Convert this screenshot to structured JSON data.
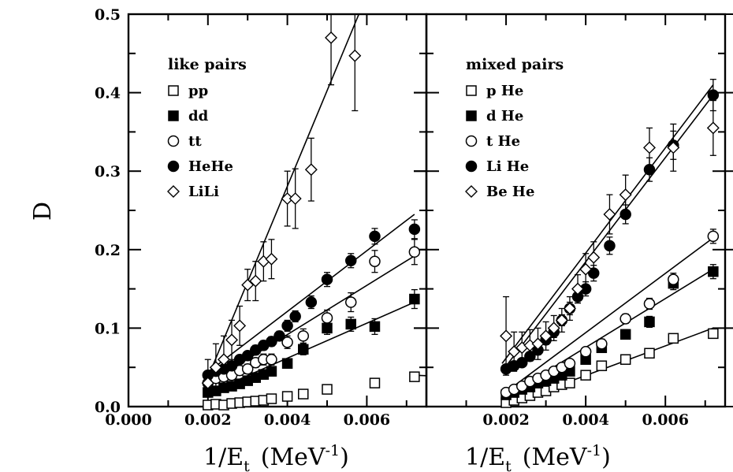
{
  "chart_data": [
    {
      "type": "scatter",
      "panel": "left",
      "ylabel": "D",
      "xlabel": "1/E",
      "xlabel_sub": "t",
      "xlabel_unit": "(MeV",
      "xlabel_exp": "-1",
      "xlabel_close": ")",
      "xlim": [
        0.0,
        0.0075
      ],
      "ylim": [
        0.0,
        0.5
      ],
      "xticks": [
        "0.000",
        "0.002",
        "0.004",
        "0.006"
      ],
      "yticks": [
        "0.0",
        "0.1",
        "0.2",
        "0.3",
        "0.4",
        "0.5"
      ],
      "legend_title": "like pairs",
      "legend_position": "top-left",
      "series": [
        {
          "name": "pp",
          "marker": "open-square",
          "fit": [
            0.027,
            0.0,
            0.0072,
            0.04
          ],
          "x": [
            0.002,
            0.0022,
            0.0024,
            0.0026,
            0.0028,
            0.003,
            0.0032,
            0.0034,
            0.0036,
            0.004,
            0.0044,
            0.005,
            0.0062,
            0.0072
          ],
          "y": [
            0.002,
            0.003,
            0.002,
            0.004,
            0.005,
            0.006,
            0.007,
            0.008,
            0.01,
            0.013,
            0.016,
            0.022,
            0.03,
            0.038
          ],
          "err": [
            0.003,
            0.003,
            0.003,
            0.003,
            0.003,
            0.003,
            0.003,
            0.003,
            0.003,
            0.003,
            0.003,
            0.003,
            0.004,
            0.004
          ]
        },
        {
          "name": "dd",
          "marker": "filled-square",
          "fit": [
            0.0019,
            0.015,
            0.0072,
            0.133
          ],
          "x": [
            0.002,
            0.0022,
            0.0024,
            0.0026,
            0.0028,
            0.003,
            0.0032,
            0.0034,
            0.0036,
            0.004,
            0.0044,
            0.005,
            0.0056,
            0.0062,
            0.0072
          ],
          "y": [
            0.018,
            0.02,
            0.024,
            0.026,
            0.029,
            0.033,
            0.037,
            0.041,
            0.045,
            0.055,
            0.073,
            0.1,
            0.105,
            0.102,
            0.137
          ],
          "err": [
            0.005,
            0.005,
            0.005,
            0.005,
            0.005,
            0.005,
            0.006,
            0.006,
            0.006,
            0.006,
            0.007,
            0.008,
            0.009,
            0.01,
            0.012
          ]
        },
        {
          "name": "tt",
          "marker": "open-circle",
          "fit": [
            0.0019,
            0.026,
            0.0072,
            0.192
          ],
          "x": [
            0.002,
            0.0022,
            0.0024,
            0.0026,
            0.0028,
            0.003,
            0.0032,
            0.0034,
            0.0036,
            0.004,
            0.0044,
            0.005,
            0.0056,
            0.0062,
            0.0072
          ],
          "y": [
            0.03,
            0.036,
            0.038,
            0.04,
            0.046,
            0.048,
            0.056,
            0.06,
            0.06,
            0.082,
            0.09,
            0.113,
            0.133,
            0.185,
            0.197
          ],
          "err": [
            0.005,
            0.005,
            0.005,
            0.006,
            0.006,
            0.006,
            0.006,
            0.007,
            0.007,
            0.008,
            0.009,
            0.01,
            0.012,
            0.014,
            0.016
          ]
        },
        {
          "name": "HeHe",
          "marker": "filled-circle",
          "fit": [
            0.0019,
            0.04,
            0.0072,
            0.245
          ],
          "x": [
            0.002,
            0.0022,
            0.0024,
            0.0026,
            0.0028,
            0.003,
            0.0032,
            0.0034,
            0.0036,
            0.0038,
            0.004,
            0.0042,
            0.0046,
            0.005,
            0.0056,
            0.0062,
            0.0072
          ],
          "y": [
            0.04,
            0.045,
            0.048,
            0.052,
            0.06,
            0.065,
            0.072,
            0.078,
            0.083,
            0.09,
            0.103,
            0.115,
            0.133,
            0.162,
            0.186,
            0.217,
            0.226
          ],
          "err": [
            0.005,
            0.005,
            0.005,
            0.005,
            0.005,
            0.005,
            0.006,
            0.006,
            0.006,
            0.006,
            0.007,
            0.007,
            0.008,
            0.009,
            0.009,
            0.01,
            0.012
          ]
        },
        {
          "name": "LiLi",
          "marker": "open-diamond",
          "fit": [
            0.0019,
            0.025,
            0.0058,
            0.5
          ],
          "x": [
            0.002,
            0.0022,
            0.0024,
            0.0026,
            0.0028,
            0.003,
            0.0032,
            0.0034,
            0.0036,
            0.004,
            0.0042,
            0.0046,
            0.0051,
            0.0057
          ],
          "y": [
            0.03,
            0.05,
            0.06,
            0.085,
            0.103,
            0.155,
            0.16,
            0.185,
            0.188,
            0.265,
            0.265,
            0.302,
            0.47,
            0.447
          ],
          "err": [
            0.03,
            0.03,
            0.03,
            0.025,
            0.025,
            0.02,
            0.025,
            0.025,
            0.025,
            0.035,
            0.038,
            0.04,
            0.06,
            0.07
          ]
        }
      ]
    },
    {
      "type": "scatter",
      "panel": "right",
      "xlabel": "1/E",
      "xlabel_sub": "t",
      "xlabel_unit": "(MeV",
      "xlabel_exp": "-1",
      "xlabel_close": ")",
      "xlim": [
        0.0,
        0.0075
      ],
      "ylim": [
        0.0,
        0.5
      ],
      "xticks": [
        "0.002",
        "0.004",
        "0.006"
      ],
      "legend_title": "mixed pairs",
      "legend_position": "top-left",
      "series": [
        {
          "name": "p He",
          "marker": "open-square",
          "fit": [
            0.0019,
            0.0,
            0.0072,
            0.1
          ],
          "x": [
            0.002,
            0.0022,
            0.0024,
            0.0026,
            0.0028,
            0.003,
            0.0032,
            0.0034,
            0.0036,
            0.004,
            0.0044,
            0.005,
            0.0056,
            0.0062,
            0.0072
          ],
          "y": [
            0.005,
            0.008,
            0.011,
            0.014,
            0.018,
            0.02,
            0.025,
            0.028,
            0.03,
            0.04,
            0.052,
            0.06,
            0.068,
            0.087,
            0.093
          ],
          "err": [
            0.003,
            0.003,
            0.003,
            0.003,
            0.003,
            0.003,
            0.003,
            0.003,
            0.004,
            0.004,
            0.004,
            0.004,
            0.004,
            0.005,
            0.005
          ]
        },
        {
          "name": "d He",
          "marker": "filled-square",
          "fit": [
            0.0019,
            0.01,
            0.0072,
            0.175
          ],
          "x": [
            0.002,
            0.0022,
            0.0024,
            0.0026,
            0.0028,
            0.003,
            0.0032,
            0.0034,
            0.0036,
            0.004,
            0.0044,
            0.005,
            0.0056,
            0.0062,
            0.0072
          ],
          "y": [
            0.015,
            0.018,
            0.022,
            0.025,
            0.03,
            0.033,
            0.036,
            0.04,
            0.045,
            0.06,
            0.075,
            0.092,
            0.108,
            0.157,
            0.172
          ],
          "err": [
            0.004,
            0.004,
            0.004,
            0.004,
            0.004,
            0.004,
            0.004,
            0.005,
            0.005,
            0.005,
            0.006,
            0.006,
            0.007,
            0.008,
            0.009
          ]
        },
        {
          "name": "t He",
          "marker": "open-circle",
          "fit": [
            0.0019,
            0.015,
            0.0072,
            0.215
          ],
          "x": [
            0.002,
            0.0022,
            0.0024,
            0.0026,
            0.0028,
            0.003,
            0.0032,
            0.0034,
            0.0036,
            0.004,
            0.0044,
            0.005,
            0.0056,
            0.0062,
            0.0072
          ],
          "y": [
            0.018,
            0.022,
            0.026,
            0.032,
            0.036,
            0.04,
            0.045,
            0.05,
            0.055,
            0.07,
            0.08,
            0.112,
            0.131,
            0.162,
            0.217
          ],
          "err": [
            0.004,
            0.004,
            0.004,
            0.004,
            0.004,
            0.004,
            0.004,
            0.005,
            0.005,
            0.005,
            0.006,
            0.006,
            0.007,
            0.008,
            0.009
          ]
        },
        {
          "name": "Li He",
          "marker": "filled-circle",
          "fit": [
            0.0019,
            0.045,
            0.0072,
            0.397
          ],
          "x": [
            0.002,
            0.0022,
            0.0024,
            0.0026,
            0.0028,
            0.003,
            0.0032,
            0.0034,
            0.0036,
            0.0038,
            0.004,
            0.0042,
            0.0046,
            0.005,
            0.0056,
            0.0062,
            0.0072
          ],
          "y": [
            0.048,
            0.052,
            0.056,
            0.064,
            0.072,
            0.085,
            0.095,
            0.11,
            0.125,
            0.14,
            0.15,
            0.17,
            0.205,
            0.245,
            0.302,
            0.333,
            0.397
          ],
          "err": [
            0.005,
            0.005,
            0.005,
            0.005,
            0.006,
            0.006,
            0.007,
            0.007,
            0.008,
            0.008,
            0.009,
            0.01,
            0.011,
            0.012,
            0.015,
            0.018,
            0.02
          ]
        },
        {
          "name": "Be He",
          "marker": "open-diamond",
          "fit": [
            0.0019,
            0.055,
            0.0072,
            0.41
          ],
          "x": [
            0.002,
            0.0022,
            0.0024,
            0.0026,
            0.0028,
            0.003,
            0.0032,
            0.0034,
            0.0036,
            0.0038,
            0.004,
            0.0042,
            0.0046,
            0.005,
            0.0056,
            0.0062,
            0.0072
          ],
          "y": [
            0.09,
            0.07,
            0.075,
            0.078,
            0.08,
            0.09,
            0.1,
            0.11,
            0.125,
            0.15,
            0.175,
            0.19,
            0.245,
            0.27,
            0.33,
            0.33,
            0.355
          ],
          "err": [
            0.05,
            0.025,
            0.02,
            0.02,
            0.02,
            0.018,
            0.016,
            0.015,
            0.015,
            0.018,
            0.02,
            0.02,
            0.025,
            0.025,
            0.025,
            0.03,
            0.035
          ]
        }
      ]
    }
  ]
}
